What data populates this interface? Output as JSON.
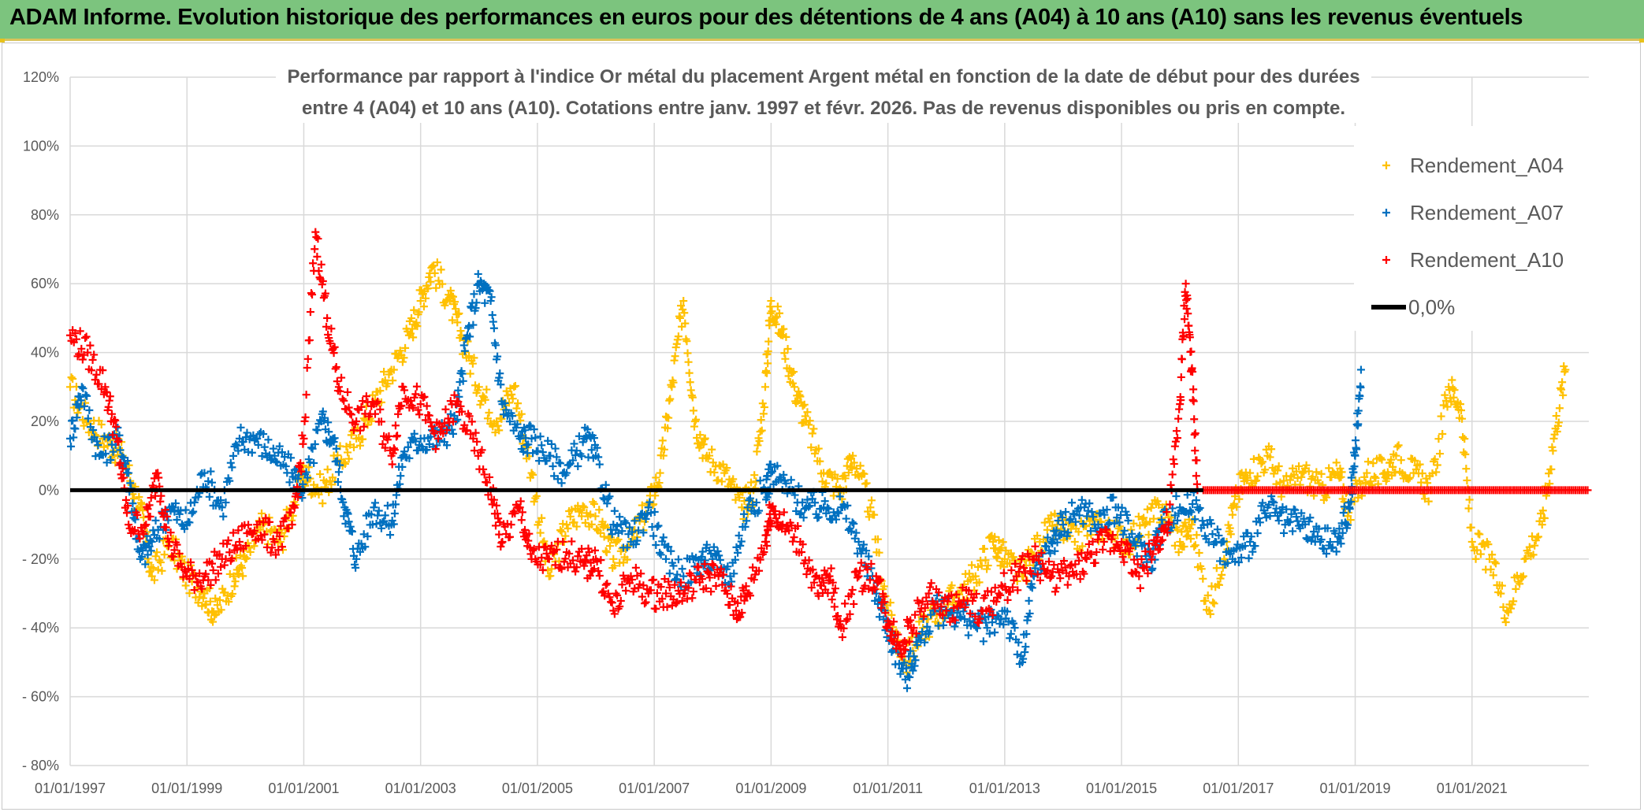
{
  "header": {
    "title": "ADAM Informe. Evolution historique des performances en euros pour des détentions de 4 ans (A04) à 10 ans (A10) sans les revenus éventuels"
  },
  "chart_data": {
    "type": "scatter",
    "title_line1": "Performance par rapport à l'indice Or métal  du placement Argent métal en fonction de la date de début pour des durées",
    "title_line2": "entre 4 (A04) et 10 ans (A10). Cotations entre janv. 1997 et févr. 2026. Pas de revenus disponibles ou pris en compte.",
    "xlabel": "",
    "ylabel": "",
    "x_range": [
      1997.0,
      2023.0
    ],
    "ylim": [
      -80,
      120
    ],
    "y_ticks": [
      {
        "value": 120,
        "label": "120%"
      },
      {
        "value": 100,
        "label": "100%"
      },
      {
        "value": 80,
        "label": "80%"
      },
      {
        "value": 60,
        "label": "60%"
      },
      {
        "value": 40,
        "label": "40%"
      },
      {
        "value": 20,
        "label": "20%"
      },
      {
        "value": 0,
        "label": "0%"
      },
      {
        "value": -20,
        "label": "- 20%"
      },
      {
        "value": -40,
        "label": "- 40%"
      },
      {
        "value": -60,
        "label": "- 60%"
      },
      {
        "value": -80,
        "label": "- 80%"
      }
    ],
    "x_ticks": [
      {
        "value": 1997,
        "label": "01/01/1997"
      },
      {
        "value": 1999,
        "label": "01/01/1999"
      },
      {
        "value": 2001,
        "label": "01/01/2001"
      },
      {
        "value": 2003,
        "label": "01/01/2003"
      },
      {
        "value": 2005,
        "label": "01/01/2005"
      },
      {
        "value": 2007,
        "label": "01/01/2007"
      },
      {
        "value": 2009,
        "label": "01/01/2009"
      },
      {
        "value": 2011,
        "label": "01/01/2011"
      },
      {
        "value": 2013,
        "label": "01/01/2013"
      },
      {
        "value": 2015,
        "label": "01/01/2015"
      },
      {
        "value": 2017,
        "label": "01/01/2017"
      },
      {
        "value": 2019,
        "label": "01/01/2019"
      },
      {
        "value": 2021,
        "label": "01/01/2021"
      }
    ],
    "grid": true,
    "legend_position": "top-right",
    "series": [
      {
        "name": "Rendement_A04",
        "color": "#ffc000",
        "marker": "+",
        "points": [
          [
            1997.0,
            30
          ],
          [
            1997.3,
            20
          ],
          [
            1997.6,
            15
          ],
          [
            1997.9,
            10
          ],
          [
            1998.2,
            -5
          ],
          [
            1998.4,
            -25
          ],
          [
            1998.7,
            -15
          ],
          [
            1999.0,
            -25
          ],
          [
            1999.3,
            -30
          ],
          [
            1999.5,
            -36
          ],
          [
            1999.8,
            -25
          ],
          [
            2000.0,
            -20
          ],
          [
            2000.3,
            -10
          ],
          [
            2000.6,
            -15
          ],
          [
            2000.9,
            0
          ],
          [
            2001.0,
            5
          ],
          [
            2001.3,
            0
          ],
          [
            2001.6,
            8
          ],
          [
            2001.9,
            15
          ],
          [
            2002.2,
            25
          ],
          [
            2002.5,
            35
          ],
          [
            2002.8,
            45
          ],
          [
            2003.0,
            55
          ],
          [
            2003.2,
            65
          ],
          [
            2003.5,
            55
          ],
          [
            2003.7,
            45
          ],
          [
            2004.0,
            30
          ],
          [
            2004.3,
            20
          ],
          [
            2004.6,
            30
          ],
          [
            2004.9,
            5
          ],
          [
            2005.2,
            -25
          ],
          [
            2005.5,
            -10
          ],
          [
            2005.8,
            -5
          ],
          [
            2006.1,
            -10
          ],
          [
            2006.3,
            -20
          ],
          [
            2006.6,
            -15
          ],
          [
            2006.9,
            -5
          ],
          [
            2007.1,
            5
          ],
          [
            2007.3,
            30
          ],
          [
            2007.5,
            55
          ],
          [
            2007.7,
            20
          ],
          [
            2007.9,
            10
          ],
          [
            2008.2,
            5
          ],
          [
            2008.5,
            -5
          ],
          [
            2008.7,
            0
          ],
          [
            2008.9,
            30
          ],
          [
            2009.0,
            55
          ],
          [
            2009.2,
            45
          ],
          [
            2009.4,
            30
          ],
          [
            2009.6,
            20
          ],
          [
            2009.9,
            5
          ],
          [
            2010.2,
            0
          ],
          [
            2010.4,
            10
          ],
          [
            2010.7,
            -5
          ],
          [
            2011.0,
            -35
          ],
          [
            2011.3,
            -50
          ],
          [
            2011.6,
            -40
          ],
          [
            2011.9,
            -35
          ],
          [
            2012.2,
            -30
          ],
          [
            2012.5,
            -25
          ],
          [
            2012.8,
            -15
          ],
          [
            2013.0,
            -20
          ],
          [
            2013.3,
            -25
          ],
          [
            2013.6,
            -15
          ],
          [
            2013.9,
            -10
          ],
          [
            2014.2,
            -15
          ],
          [
            2014.5,
            -10
          ],
          [
            2014.8,
            -12
          ],
          [
            2015.1,
            -15
          ],
          [
            2015.4,
            -10
          ],
          [
            2015.7,
            -5
          ],
          [
            2016.0,
            -15
          ],
          [
            2016.2,
            -10
          ],
          [
            2016.5,
            -35
          ],
          [
            2016.8,
            -15
          ],
          [
            2017.0,
            0
          ],
          [
            2017.2,
            5
          ],
          [
            2017.5,
            10
          ],
          [
            2017.8,
            0
          ],
          [
            2018.1,
            5
          ],
          [
            2018.4,
            0
          ],
          [
            2018.7,
            5
          ],
          [
            2018.9,
            -5
          ],
          [
            2019.2,
            5
          ],
          [
            2019.5,
            5
          ],
          [
            2019.7,
            10
          ],
          [
            2020.0,
            5
          ],
          [
            2020.3,
            0
          ],
          [
            2020.6,
            30
          ],
          [
            2020.8,
            25
          ],
          [
            2021.0,
            -15
          ],
          [
            2021.3,
            -20
          ],
          [
            2021.6,
            -35
          ],
          [
            2021.9,
            -20
          ],
          [
            2022.2,
            -10
          ],
          [
            2022.4,
            15
          ],
          [
            2022.6,
            35
          ]
        ]
      },
      {
        "name": "Rendement_A07",
        "color": "#0070c0",
        "marker": "+",
        "points": [
          [
            1997.0,
            15
          ],
          [
            1997.2,
            30
          ],
          [
            1997.5,
            10
          ],
          [
            1997.8,
            15
          ],
          [
            1998.0,
            5
          ],
          [
            1998.2,
            -20
          ],
          [
            1998.4,
            -15
          ],
          [
            1998.7,
            -5
          ],
          [
            1999.0,
            -10
          ],
          [
            1999.3,
            5
          ],
          [
            1999.6,
            -5
          ],
          [
            1999.9,
            15
          ],
          [
            2000.2,
            15
          ],
          [
            2000.5,
            10
          ],
          [
            2000.8,
            5
          ],
          [
            2001.0,
            0
          ],
          [
            2001.3,
            20
          ],
          [
            2001.5,
            15
          ],
          [
            2001.7,
            -5
          ],
          [
            2001.9,
            -20
          ],
          [
            2002.2,
            -5
          ],
          [
            2002.5,
            -10
          ],
          [
            2002.7,
            10
          ],
          [
            2003.0,
            15
          ],
          [
            2003.3,
            15
          ],
          [
            2003.6,
            20
          ],
          [
            2003.8,
            45
          ],
          [
            2004.0,
            60
          ],
          [
            2004.2,
            55
          ],
          [
            2004.4,
            25
          ],
          [
            2004.7,
            15
          ],
          [
            2004.9,
            15
          ],
          [
            2005.2,
            10
          ],
          [
            2005.5,
            5
          ],
          [
            2005.8,
            15
          ],
          [
            2006.0,
            10
          ],
          [
            2006.3,
            -10
          ],
          [
            2006.6,
            -15
          ],
          [
            2006.9,
            -5
          ],
          [
            2007.2,
            -20
          ],
          [
            2007.5,
            -25
          ],
          [
            2007.8,
            -20
          ],
          [
            2008.0,
            -20
          ],
          [
            2008.3,
            -25
          ],
          [
            2008.6,
            -5
          ],
          [
            2008.9,
            0
          ],
          [
            2009.0,
            5
          ],
          [
            2009.3,
            0
          ],
          [
            2009.6,
            -5
          ],
          [
            2009.9,
            -5
          ],
          [
            2010.2,
            -5
          ],
          [
            2010.5,
            -15
          ],
          [
            2010.8,
            -30
          ],
          [
            2011.0,
            -40
          ],
          [
            2011.3,
            -55
          ],
          [
            2011.5,
            -45
          ],
          [
            2011.8,
            -35
          ],
          [
            2012.1,
            -35
          ],
          [
            2012.4,
            -38
          ],
          [
            2012.7,
            -40
          ],
          [
            2013.0,
            -35
          ],
          [
            2013.3,
            -50
          ],
          [
            2013.5,
            -25
          ],
          [
            2013.8,
            -15
          ],
          [
            2014.0,
            -10
          ],
          [
            2014.3,
            -5
          ],
          [
            2014.6,
            -10
          ],
          [
            2014.9,
            -5
          ],
          [
            2015.2,
            -15
          ],
          [
            2015.5,
            -20
          ],
          [
            2015.7,
            -10
          ],
          [
            2016.0,
            -5
          ],
          [
            2016.3,
            -5
          ],
          [
            2016.6,
            -15
          ],
          [
            2016.9,
            -20
          ],
          [
            2017.2,
            -15
          ],
          [
            2017.5,
            -5
          ],
          [
            2017.8,
            -10
          ],
          [
            2018.1,
            -10
          ],
          [
            2018.4,
            -15
          ],
          [
            2018.7,
            -15
          ],
          [
            2018.9,
            -5
          ],
          [
            2019.0,
            10
          ],
          [
            2019.1,
            35
          ]
        ]
      },
      {
        "name": "Rendement_A10",
        "color": "#ff0000",
        "marker": "+",
        "points": [
          [
            1997.0,
            45
          ],
          [
            1997.3,
            40
          ],
          [
            1997.6,
            30
          ],
          [
            1997.8,
            15
          ],
          [
            1998.0,
            -10
          ],
          [
            1998.3,
            -10
          ],
          [
            1998.5,
            5
          ],
          [
            1998.7,
            -15
          ],
          [
            1999.0,
            -25
          ],
          [
            1999.3,
            -25
          ],
          [
            1999.6,
            -20
          ],
          [
            1999.9,
            -15
          ],
          [
            2000.2,
            -10
          ],
          [
            2000.5,
            -15
          ],
          [
            2000.8,
            -10
          ],
          [
            2001.0,
            15
          ],
          [
            2001.2,
            75
          ],
          [
            2001.4,
            50
          ],
          [
            2001.6,
            30
          ],
          [
            2001.9,
            20
          ],
          [
            2002.2,
            25
          ],
          [
            2002.5,
            10
          ],
          [
            2002.7,
            30
          ],
          [
            2003.0,
            25
          ],
          [
            2003.3,
            15
          ],
          [
            2003.6,
            25
          ],
          [
            2003.9,
            15
          ],
          [
            2004.2,
            0
          ],
          [
            2004.4,
            -15
          ],
          [
            2004.7,
            -5
          ],
          [
            2004.9,
            -20
          ],
          [
            2005.2,
            -20
          ],
          [
            2005.5,
            -18
          ],
          [
            2005.8,
            -22
          ],
          [
            2006.0,
            -20
          ],
          [
            2006.3,
            -35
          ],
          [
            2006.6,
            -25
          ],
          [
            2006.9,
            -30
          ],
          [
            2007.2,
            -30
          ],
          [
            2007.5,
            -30
          ],
          [
            2007.8,
            -25
          ],
          [
            2008.1,
            -25
          ],
          [
            2008.4,
            -35
          ],
          [
            2008.6,
            -30
          ],
          [
            2008.9,
            -15
          ],
          [
            2009.0,
            -5
          ],
          [
            2009.2,
            -10
          ],
          [
            2009.5,
            -15
          ],
          [
            2009.8,
            -30
          ],
          [
            2010.0,
            -25
          ],
          [
            2010.2,
            -40
          ],
          [
            2010.5,
            -25
          ],
          [
            2010.8,
            -25
          ],
          [
            2011.0,
            -38
          ],
          [
            2011.2,
            -45
          ],
          [
            2011.4,
            -40
          ],
          [
            2011.7,
            -30
          ],
          [
            2012.0,
            -35
          ],
          [
            2012.3,
            -32
          ],
          [
            2012.6,
            -35
          ],
          [
            2012.9,
            -30
          ],
          [
            2013.2,
            -25
          ],
          [
            2013.5,
            -20
          ],
          [
            2013.8,
            -25
          ],
          [
            2014.1,
            -25
          ],
          [
            2014.4,
            -20
          ],
          [
            2014.7,
            -15
          ],
          [
            2015.0,
            -15
          ],
          [
            2015.3,
            -25
          ],
          [
            2015.6,
            -15
          ],
          [
            2015.8,
            -10
          ],
          [
            2016.0,
            25
          ],
          [
            2016.1,
            60
          ],
          [
            2016.2,
            35
          ],
          [
            2016.3,
            0
          ]
        ],
        "zero_band": [
          2016.4,
          2023.0
        ]
      },
      {
        "name": "0,0%",
        "color": "#000000",
        "type": "line",
        "y": 0
      }
    ]
  }
}
